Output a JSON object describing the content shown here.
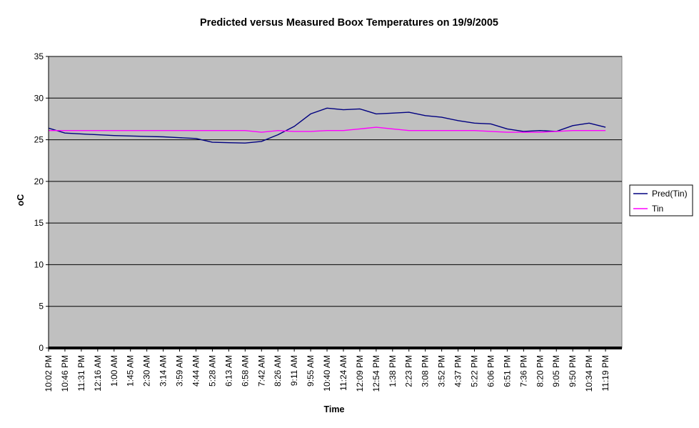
{
  "chart_data": {
    "type": "line",
    "title": "Predicted versus Measured Boox Temperatures on 19/9/2005",
    "xlabel": "Time",
    "ylabel": "oC",
    "ylim": [
      0,
      35
    ],
    "yticks": [
      0,
      5,
      10,
      15,
      20,
      25,
      30,
      35
    ],
    "grid": true,
    "legend_position": "right",
    "plot_background": "#c0c0c0",
    "categories": [
      "10:02 PM",
      "10:46 PM",
      "11:31 PM",
      "12:16 AM",
      "1:00 AM",
      "1:45 AM",
      "2:30 AM",
      "3:14 AM",
      "3:59 AM",
      "4:44 AM",
      "5:28 AM",
      "6:13 AM",
      "6:58 AM",
      "7:42 AM",
      "8:26 AM",
      "9:11 AM",
      "9:55 AM",
      "10:40 AM",
      "11:24 AM",
      "12:09 PM",
      "12:54 PM",
      "1:38 PM",
      "2:23 PM",
      "3:08 PM",
      "3:52 PM",
      "4:37 PM",
      "5:22 PM",
      "6:06 PM",
      "6:51 PM",
      "7:36 PM",
      "8:20 PM",
      "9:05 PM",
      "9:50 PM",
      "10:34 PM",
      "11:19 PM"
    ],
    "series": [
      {
        "name": "Pred(Tin)",
        "color": "#000080",
        "values": [
          26.4,
          25.8,
          25.7,
          25.6,
          25.5,
          25.45,
          25.4,
          25.35,
          25.25,
          25.15,
          24.7,
          24.65,
          24.6,
          24.8,
          25.6,
          26.6,
          28.1,
          28.8,
          28.6,
          28.7,
          28.1,
          28.2,
          28.3,
          27.9,
          27.7,
          27.3,
          27.0,
          26.9,
          26.3,
          26.0,
          26.1,
          26.0,
          26.7,
          27.0,
          26.5
        ]
      },
      {
        "name": "Tin",
        "color": "#ff00ff",
        "values": [
          26.1,
          26.1,
          26.1,
          26.1,
          26.1,
          26.1,
          26.1,
          26.1,
          26.1,
          26.1,
          26.1,
          26.1,
          26.1,
          25.9,
          26.1,
          26.0,
          26.0,
          26.1,
          26.1,
          26.3,
          26.5,
          26.3,
          26.1,
          26.1,
          26.1,
          26.1,
          26.1,
          26.0,
          25.9,
          25.9,
          25.9,
          26.0,
          26.1,
          26.1,
          26.1
        ]
      }
    ]
  }
}
